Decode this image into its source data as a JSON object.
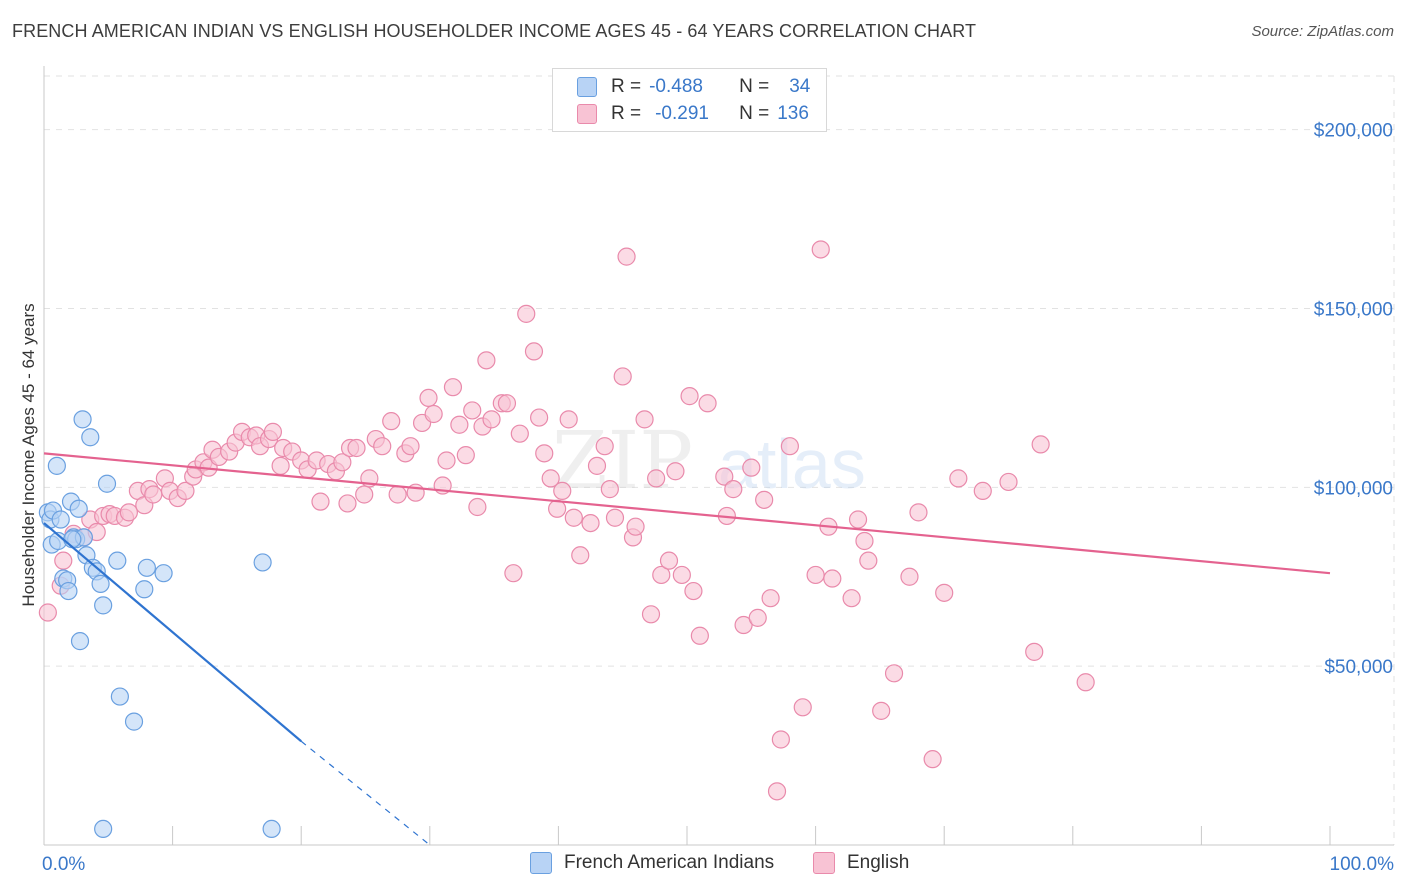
{
  "header": {
    "title": "FRENCH AMERICAN INDIAN VS ENGLISH HOUSEHOLDER INCOME AGES 45 - 64 YEARS CORRELATION CHART",
    "source": "Source: ZipAtlas.com"
  },
  "legend": {
    "rows": [
      {
        "r_label": "R =",
        "r_value": "-0.488",
        "n_label": "N =",
        "n_value": "34"
      },
      {
        "r_label": "R =",
        "r_value": "-0.291",
        "n_label": "N =",
        "n_value": "136"
      }
    ]
  },
  "watermark": {
    "zip": "ZIP",
    "atlas": "atlas"
  },
  "colors": {
    "french_fill": "#b8d3f5",
    "french_stroke": "#6aa0e0",
    "french_line": "#2f74d0",
    "english_fill": "#f8c3d4",
    "english_stroke": "#e98aab",
    "english_line": "#e4628f",
    "tick_text": "#3a78c9",
    "grid": "#e2e2e2"
  },
  "chart_data": {
    "type": "scatter",
    "title": "FRENCH AMERICAN INDIAN VS ENGLISH HOUSEHOLDER INCOME AGES 45 - 64 YEARS CORRELATION CHART",
    "xlabel": "",
    "ylabel": "Householder Income Ages 45 - 64 years",
    "xlim": [
      0,
      100
    ],
    "ylim": [
      0,
      215000
    ],
    "x_tick_labels": [
      "0.0%",
      "100.0%"
    ],
    "y_ticks": [
      50000,
      100000,
      150000,
      200000
    ],
    "y_tick_labels": [
      "$50,000",
      "$100,000",
      "$150,000",
      "$200,000"
    ],
    "grid": "horizontal dashed",
    "legend_position": "bottom",
    "series": [
      {
        "name": "French American Indians",
        "r": -0.488,
        "n": 34,
        "trend": {
          "x": [
            0,
            20
          ],
          "y": [
            90000,
            29000
          ],
          "dashed_to": [
            30,
            0
          ]
        },
        "points": [
          [
            0.3,
            93000
          ],
          [
            0.5,
            91000
          ],
          [
            0.6,
            84000
          ],
          [
            0.7,
            93500
          ],
          [
            1.0,
            106000
          ],
          [
            1.1,
            85000
          ],
          [
            1.3,
            91000
          ],
          [
            1.5,
            74500
          ],
          [
            1.8,
            74000
          ],
          [
            1.9,
            71000
          ],
          [
            2.1,
            96000
          ],
          [
            2.3,
            86000
          ],
          [
            2.5,
            85500
          ],
          [
            2.7,
            94000
          ],
          [
            2.8,
            57000
          ],
          [
            3.0,
            119000
          ],
          [
            3.1,
            86000
          ],
          [
            3.3,
            81000
          ],
          [
            3.6,
            114000
          ],
          [
            3.8,
            77500
          ],
          [
            4.1,
            76500
          ],
          [
            4.4,
            73000
          ],
          [
            4.9,
            101000
          ],
          [
            4.6,
            67000
          ],
          [
            5.7,
            79500
          ],
          [
            5.9,
            41500
          ],
          [
            7.0,
            34500
          ],
          [
            7.8,
            71500
          ],
          [
            8.0,
            77500
          ],
          [
            9.3,
            76000
          ],
          [
            17.0,
            79000
          ],
          [
            4.6,
            4500
          ],
          [
            17.7,
            4500
          ],
          [
            2.2,
            85500
          ]
        ]
      },
      {
        "name": "English",
        "r": -0.291,
        "n": 136,
        "trend": {
          "x": [
            0,
            100
          ],
          "y": [
            109500,
            76000
          ]
        },
        "points": [
          [
            0.3,
            65000
          ],
          [
            1.3,
            72500
          ],
          [
            1.5,
            79500
          ],
          [
            2.3,
            87000
          ],
          [
            3.1,
            86000
          ],
          [
            3.6,
            91000
          ],
          [
            4.1,
            87500
          ],
          [
            4.6,
            92000
          ],
          [
            5.1,
            92500
          ],
          [
            5.5,
            92000
          ],
          [
            6.3,
            91500
          ],
          [
            6.6,
            93000
          ],
          [
            7.3,
            99000
          ],
          [
            7.8,
            95000
          ],
          [
            8.2,
            99500
          ],
          [
            8.5,
            98000
          ],
          [
            9.4,
            102500
          ],
          [
            9.8,
            99000
          ],
          [
            10.4,
            97000
          ],
          [
            11.0,
            99000
          ],
          [
            11.6,
            103000
          ],
          [
            11.8,
            105000
          ],
          [
            12.4,
            107000
          ],
          [
            12.8,
            105500
          ],
          [
            13.1,
            110500
          ],
          [
            13.6,
            108500
          ],
          [
            14.4,
            110000
          ],
          [
            14.9,
            112500
          ],
          [
            15.4,
            115500
          ],
          [
            16.0,
            114000
          ],
          [
            16.5,
            114500
          ],
          [
            16.8,
            111500
          ],
          [
            17.5,
            113500
          ],
          [
            17.8,
            115500
          ],
          [
            18.6,
            111000
          ],
          [
            19.3,
            110000
          ],
          [
            18.4,
            106000
          ],
          [
            20.0,
            107500
          ],
          [
            20.5,
            105000
          ],
          [
            21.2,
            107500
          ],
          [
            21.5,
            96000
          ],
          [
            22.1,
            106500
          ],
          [
            22.7,
            104500
          ],
          [
            23.2,
            107000
          ],
          [
            23.6,
            95500
          ],
          [
            23.8,
            111000
          ],
          [
            24.3,
            111000
          ],
          [
            24.9,
            98000
          ],
          [
            25.3,
            102500
          ],
          [
            25.8,
            113500
          ],
          [
            26.3,
            111500
          ],
          [
            27.0,
            118500
          ],
          [
            27.5,
            98000
          ],
          [
            28.1,
            109500
          ],
          [
            28.5,
            111500
          ],
          [
            28.9,
            98500
          ],
          [
            29.4,
            118000
          ],
          [
            29.9,
            125000
          ],
          [
            30.3,
            120500
          ],
          [
            31.0,
            100500
          ],
          [
            31.3,
            107500
          ],
          [
            31.8,
            128000
          ],
          [
            32.3,
            117500
          ],
          [
            32.8,
            109000
          ],
          [
            33.3,
            121500
          ],
          [
            33.7,
            94500
          ],
          [
            34.1,
            117000
          ],
          [
            34.4,
            135500
          ],
          [
            34.8,
            119000
          ],
          [
            35.6,
            123500
          ],
          [
            36.0,
            123500
          ],
          [
            36.5,
            76000
          ],
          [
            37.0,
            115000
          ],
          [
            37.5,
            148500
          ],
          [
            38.1,
            138000
          ],
          [
            38.5,
            119500
          ],
          [
            38.9,
            109500
          ],
          [
            39.4,
            102500
          ],
          [
            39.9,
            94000
          ],
          [
            40.3,
            99000
          ],
          [
            40.8,
            119000
          ],
          [
            41.2,
            91500
          ],
          [
            41.7,
            81000
          ],
          [
            42.5,
            90000
          ],
          [
            43.0,
            106000
          ],
          [
            43.6,
            111500
          ],
          [
            44.0,
            99500
          ],
          [
            44.4,
            91500
          ],
          [
            45.0,
            131000
          ],
          [
            45.3,
            164500
          ],
          [
            45.8,
            86000
          ],
          [
            46.0,
            89000
          ],
          [
            46.7,
            119000
          ],
          [
            47.2,
            64500
          ],
          [
            47.6,
            102500
          ],
          [
            48.0,
            75500
          ],
          [
            48.6,
            79500
          ],
          [
            49.1,
            104500
          ],
          [
            49.6,
            75500
          ],
          [
            50.5,
            71000
          ],
          [
            51.0,
            58500
          ],
          [
            50.2,
            125500
          ],
          [
            51.6,
            123500
          ],
          [
            52.9,
            103000
          ],
          [
            53.1,
            92000
          ],
          [
            53.6,
            99500
          ],
          [
            54.4,
            61500
          ],
          [
            55.0,
            105500
          ],
          [
            55.5,
            63500
          ],
          [
            56.0,
            96500
          ],
          [
            56.5,
            69000
          ],
          [
            57.3,
            29500
          ],
          [
            58.0,
            111500
          ],
          [
            57.0,
            15000
          ],
          [
            59.0,
            38500
          ],
          [
            60.0,
            75500
          ],
          [
            60.4,
            166500
          ],
          [
            61.0,
            89000
          ],
          [
            61.3,
            74500
          ],
          [
            62.8,
            69000
          ],
          [
            63.3,
            91000
          ],
          [
            63.8,
            85000
          ],
          [
            64.1,
            79500
          ],
          [
            65.1,
            37500
          ],
          [
            66.1,
            48000
          ],
          [
            67.3,
            75000
          ],
          [
            68.0,
            93000
          ],
          [
            69.1,
            24000
          ],
          [
            70.0,
            70500
          ],
          [
            71.1,
            102500
          ],
          [
            73.0,
            99000
          ],
          [
            75.0,
            101500
          ],
          [
            77.5,
            112000
          ],
          [
            77.0,
            54000
          ],
          [
            81.0,
            45500
          ]
        ]
      }
    ]
  },
  "x_axis": {
    "min_label": "0.0%",
    "max_label": "100.0%"
  },
  "bottom_legend": {
    "series_1": "French American Indians",
    "series_2": "English"
  }
}
